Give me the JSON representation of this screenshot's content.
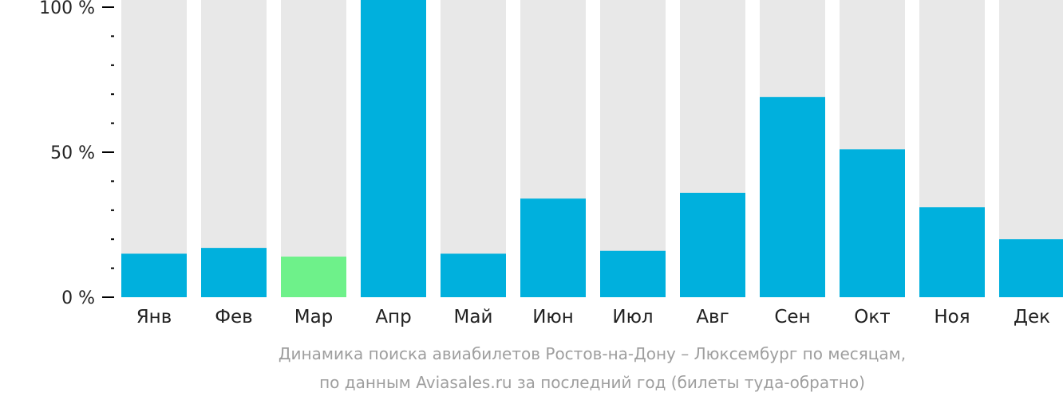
{
  "chart_data": {
    "type": "bar",
    "categories": [
      "Янв",
      "Фев",
      "Мар",
      "Апр",
      "Май",
      "Июн",
      "Июл",
      "Авг",
      "Сен",
      "Окт",
      "Ноя",
      "Дек"
    ],
    "values": [
      15,
      17,
      14,
      100,
      15,
      34,
      16,
      36,
      69,
      51,
      31,
      20
    ],
    "highlight_index": 2,
    "ylim": [
      0,
      100
    ],
    "ytick_labels": [
      "100 %",
      "50 %",
      "0 %"
    ],
    "yticks": [
      100,
      50,
      0
    ],
    "colors": {
      "bar": "#00b0dd",
      "highlight": "#6ef18a",
      "track": "#e8e8e8",
      "axis": "#000000",
      "caption": "#9e9e9e"
    }
  },
  "caption": {
    "line1": "Динамика поиска авиабилетов Ростов-на-Дону – Люксембург по месяцам,",
    "line2": "по данным Aviasales.ru за последний год (билеты туда-обратно)"
  }
}
